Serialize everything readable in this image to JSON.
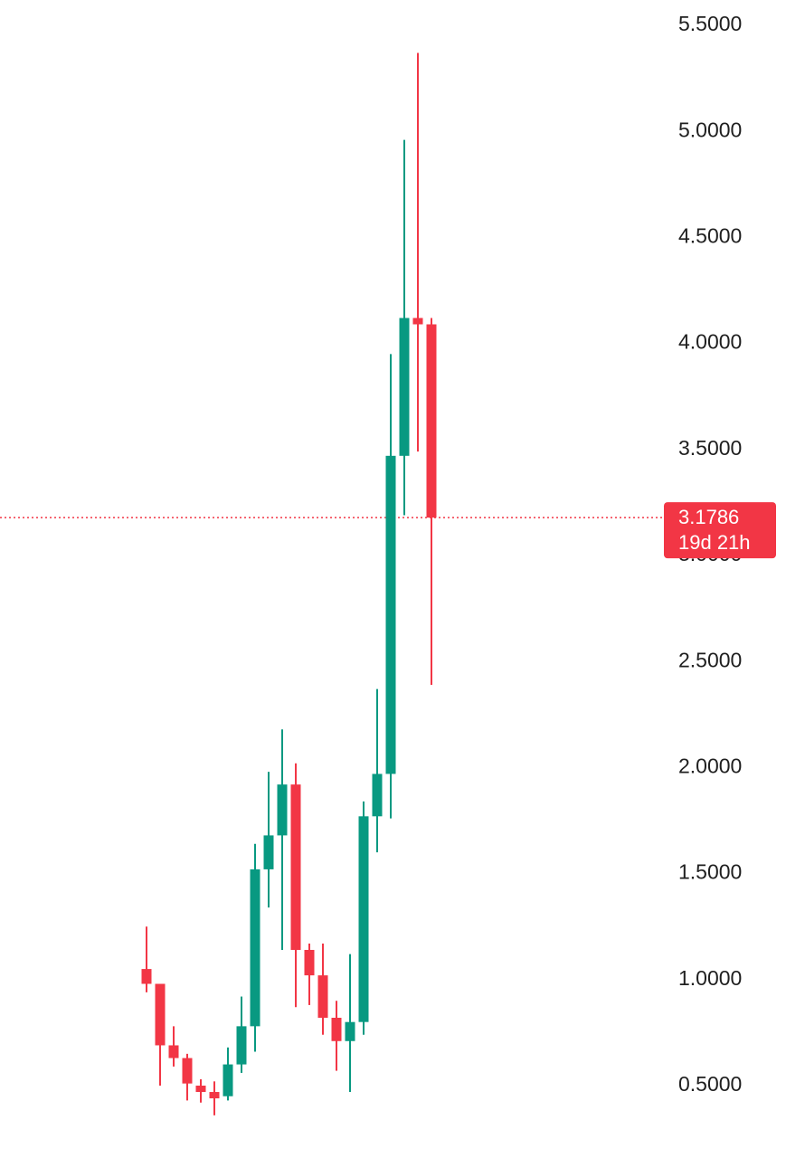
{
  "chart_data": {
    "type": "candlestick",
    "title": "",
    "xlabel": "",
    "ylabel": "",
    "ylim": [
      0.3,
      5.6
    ],
    "y_ticks": [
      "5.5000",
      "5.0000",
      "4.5000",
      "4.0000",
      "3.5000",
      "3.0000",
      "2.5000",
      "2.0000",
      "1.5000",
      "1.0000",
      "0.5000"
    ],
    "colors": {
      "up": "#089981",
      "down": "#f23645"
    },
    "candles": [
      {
        "open": 1.05,
        "high": 1.25,
        "low": 0.94,
        "close": 0.98
      },
      {
        "open": 0.98,
        "high": 0.98,
        "low": 0.5,
        "close": 0.69
      },
      {
        "open": 0.69,
        "high": 0.78,
        "low": 0.59,
        "close": 0.63
      },
      {
        "open": 0.63,
        "high": 0.65,
        "low": 0.43,
        "close": 0.51
      },
      {
        "open": 0.5,
        "high": 0.53,
        "low": 0.42,
        "close": 0.47
      },
      {
        "open": 0.47,
        "high": 0.52,
        "low": 0.36,
        "close": 0.44
      },
      {
        "open": 0.45,
        "high": 0.68,
        "low": 0.43,
        "close": 0.6
      },
      {
        "open": 0.6,
        "high": 0.92,
        "low": 0.56,
        "close": 0.78
      },
      {
        "open": 0.78,
        "high": 1.64,
        "low": 0.66,
        "close": 1.52
      },
      {
        "open": 1.52,
        "high": 1.98,
        "low": 1.34,
        "close": 1.68
      },
      {
        "open": 1.68,
        "high": 2.18,
        "low": 1.14,
        "close": 1.92
      },
      {
        "open": 1.92,
        "high": 2.02,
        "low": 0.87,
        "close": 1.14
      },
      {
        "open": 1.14,
        "high": 1.17,
        "low": 0.88,
        "close": 1.02
      },
      {
        "open": 1.02,
        "high": 1.17,
        "low": 0.74,
        "close": 0.82
      },
      {
        "open": 0.82,
        "high": 0.9,
        "low": 0.57,
        "close": 0.71
      },
      {
        "open": 0.71,
        "high": 1.12,
        "low": 0.47,
        "close": 0.8
      },
      {
        "open": 0.8,
        "high": 1.84,
        "low": 0.74,
        "close": 1.77
      },
      {
        "open": 1.77,
        "high": 2.37,
        "low": 1.6,
        "close": 1.97
      },
      {
        "open": 1.97,
        "high": 3.95,
        "low": 1.76,
        "close": 3.47
      },
      {
        "open": 3.47,
        "high": 4.96,
        "low": 3.19,
        "close": 4.12
      },
      {
        "open": 4.12,
        "high": 5.37,
        "low": 3.49,
        "close": 4.09
      },
      {
        "open": 4.09,
        "high": 4.12,
        "low": 2.39,
        "close": 3.1786
      }
    ],
    "last_price": {
      "value": 3.1786,
      "label": "3.1786",
      "countdown": "19d 21h",
      "line_style": "dotted",
      "color": "#f23645"
    }
  }
}
